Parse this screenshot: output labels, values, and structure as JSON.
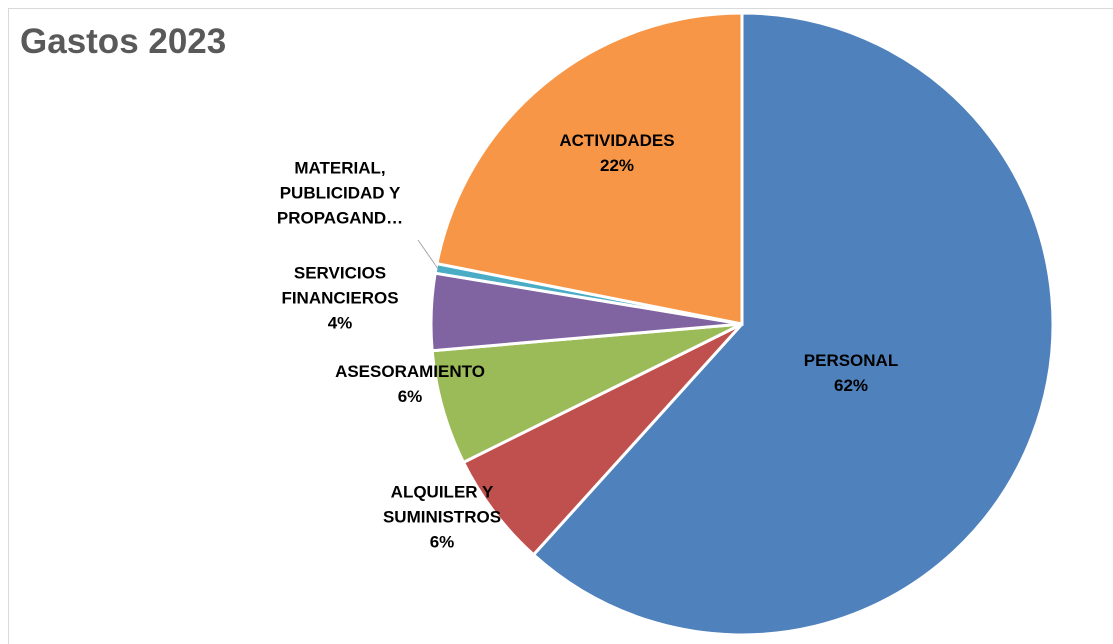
{
  "chart_data": {
    "type": "pie",
    "title": "Gastos 2023",
    "categories": [
      "PERSONAL",
      "ALQUILER Y SUMINISTROS",
      "ASESORAMIENTO",
      "SERVICIOS FINANCIEROS",
      "MATERIAL, PUBLICIDAD Y PROPAGAND…",
      "ACTIVIDADES"
    ],
    "values": [
      62,
      6,
      6,
      4,
      0.5,
      22
    ],
    "value_labels": [
      "62%",
      "6%",
      "6%",
      "4%",
      null,
      "22%"
    ],
    "colors": [
      "#4f81bd",
      "#c0504d",
      "#9bbb59",
      "#8064a2",
      "#4bacc6",
      "#f79646"
    ]
  }
}
